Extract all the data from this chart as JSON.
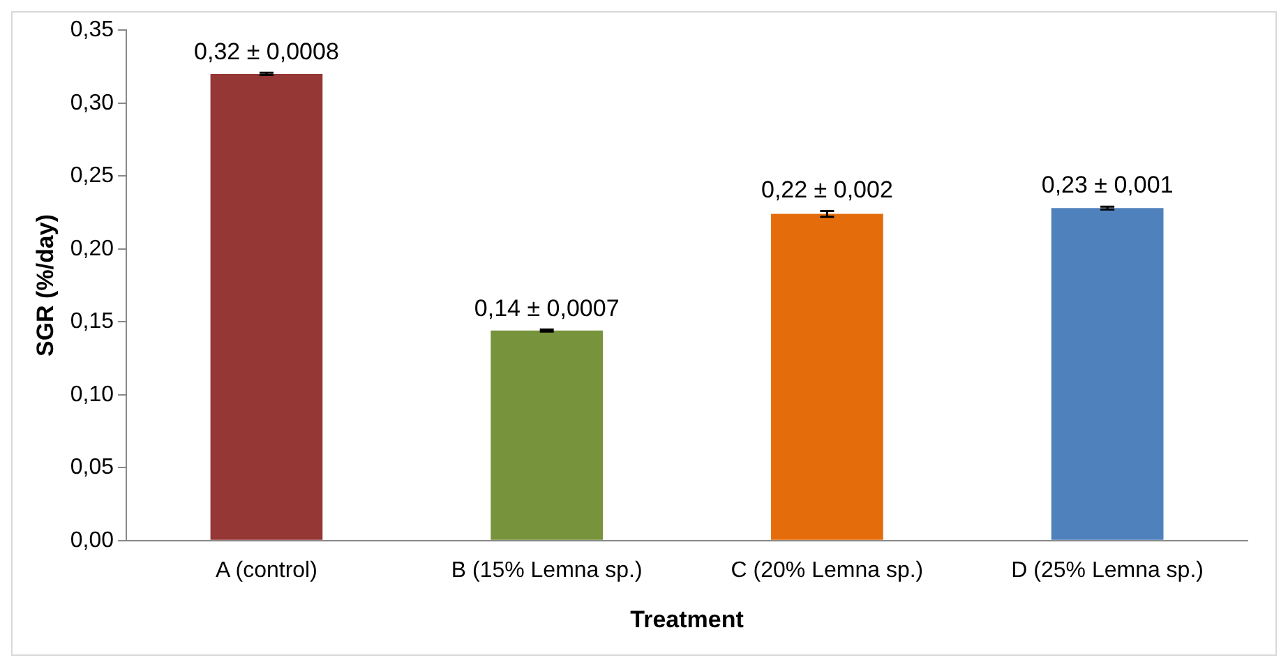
{
  "chart_data": {
    "type": "bar",
    "xlabel": "Treatment",
    "ylabel": "SGR (%/day)",
    "categories": [
      "A (control)",
      "B (15% Lemna sp.)",
      "C (20% Lemna sp.)",
      "D (25% Lemna sp.)"
    ],
    "values": [
      0.32,
      0.144,
      0.224,
      0.228
    ],
    "colors": [
      "#953735",
      "#77933c",
      "#e46c0a",
      "#4f81bd"
    ],
    "errors": [
      0.0008,
      0.0007,
      0.002,
      0.001
    ],
    "value_labels": [
      "0,32 ± 0,0008",
      "0,14 ± 0,0007",
      "0,22 ± 0,002",
      "0,23 ± 0,001"
    ],
    "ylim": [
      0,
      0.35
    ],
    "yticks": [
      {
        "value": 0,
        "label": "0,00"
      },
      {
        "value": 0.05,
        "label": "0,05"
      },
      {
        "value": 0.1,
        "label": "0,10"
      },
      {
        "value": 0.15,
        "label": "0,15"
      },
      {
        "value": 0.2,
        "label": "0,20"
      },
      {
        "value": 0.25,
        "label": "0,25"
      },
      {
        "value": 0.3,
        "label": "0,30"
      },
      {
        "value": 0.35,
        "label": "0,35"
      }
    ],
    "grid": false,
    "legend": false
  }
}
